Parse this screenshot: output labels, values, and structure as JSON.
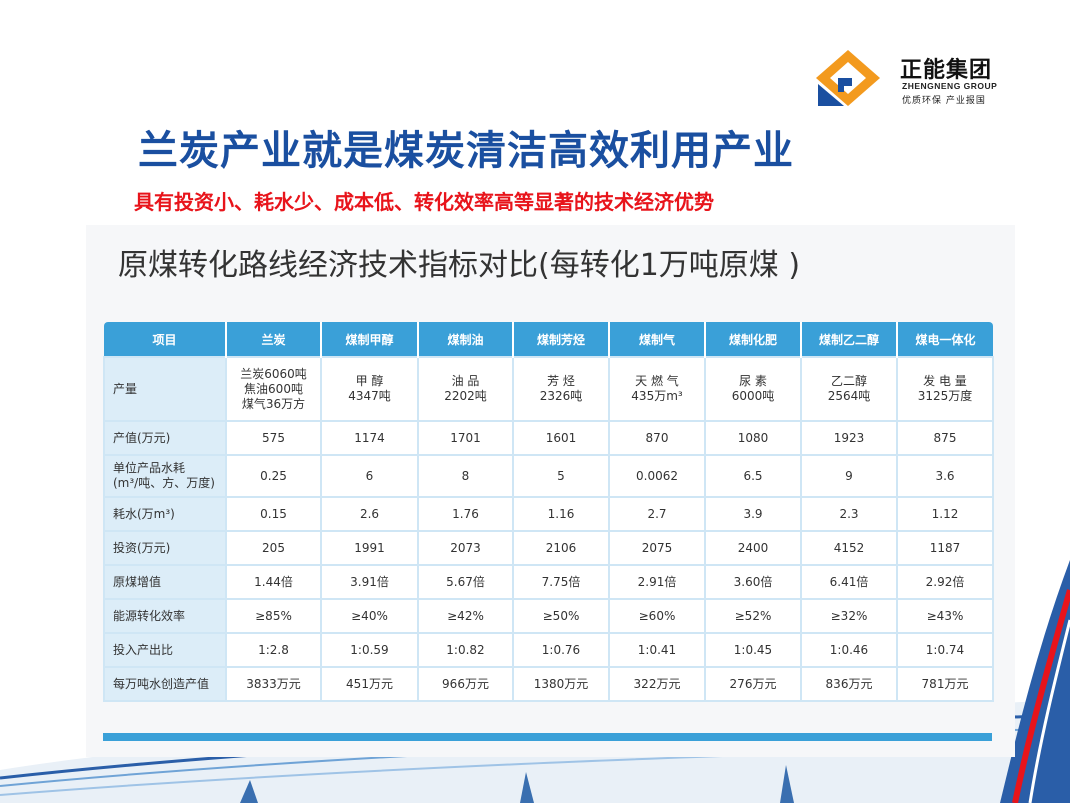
{
  "logo": {
    "name_cn": "正能集团",
    "name_en": "ZHENGNENG GROUP",
    "slogan": "优质环保  产业报国"
  },
  "title": "兰炭产业就是煤炭清洁高效利用产业",
  "subtitle": "具有投资小、耗水少、成本低、转化效率高等显著的技术经济优势",
  "table_title": "原煤转化路线经济技术指标对比(每转化1万吨原煤 )",
  "colors": {
    "title_blue": "#1a4fa0",
    "subtitle_red": "#e8141b",
    "header_blue": "#3aa0d8",
    "rowhead_bg": "#dcedf8"
  },
  "table": {
    "headers": [
      "项目",
      "兰炭",
      "煤制甲醇",
      "煤制油",
      "煤制芳烃",
      "煤制气",
      "煤制化肥",
      "煤制乙二醇",
      "煤电一体化"
    ],
    "rows": [
      {
        "label": "产量",
        "cells": [
          "兰炭6060吨\n焦油600吨\n煤气36万方",
          "甲  醇\n4347吨",
          "油  品\n2202吨",
          "芳  烃\n2326吨",
          "天 燃 气\n435万m³",
          "尿  素\n6000吨",
          "乙二醇\n2564吨",
          "发 电 量\n3125万度"
        ]
      },
      {
        "label": "产值(万元)",
        "cells": [
          "575",
          "1174",
          "1701",
          "1601",
          "870",
          "1080",
          "1923",
          "875"
        ]
      },
      {
        "label": "单位产品水耗\n(m³/吨、方、万度)",
        "cells": [
          "0.25",
          "6",
          "8",
          "5",
          "0.0062",
          "6.5",
          "9",
          "3.6"
        ]
      },
      {
        "label": "耗水(万m³)",
        "cells": [
          "0.15",
          "2.6",
          "1.76",
          "1.16",
          "2.7",
          "3.9",
          "2.3",
          "1.12"
        ]
      },
      {
        "label": "投资(万元)",
        "cells": [
          "205",
          "1991",
          "2073",
          "2106",
          "2075",
          "2400",
          "4152",
          "1187"
        ]
      },
      {
        "label": "原煤增值",
        "cells": [
          "1.44倍",
          "3.91倍",
          "5.67倍",
          "7.75倍",
          "2.91倍",
          "3.60倍",
          "6.41倍",
          "2.92倍"
        ]
      },
      {
        "label": "能源转化效率",
        "cells": [
          "≥85%",
          "≥40%",
          "≥42%",
          "≥50%",
          "≥60%",
          "≥52%",
          "≥32%",
          "≥43%"
        ]
      },
      {
        "label": "投入产出比",
        "cells": [
          "1:2.8",
          "1:0.59",
          "1:0.82",
          "1:0.76",
          "1:0.41",
          "1:0.45",
          "1:0.46",
          "1:0.74"
        ]
      },
      {
        "label": "每万吨水创造产值",
        "cells": [
          "3833万元",
          "451万元",
          "966万元",
          "1380万元",
          "322万元",
          "276万元",
          "836万元",
          "781万元"
        ]
      }
    ]
  }
}
